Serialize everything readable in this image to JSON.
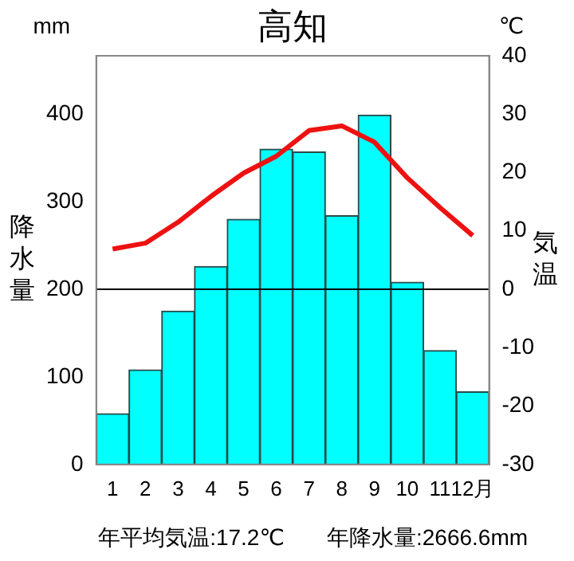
{
  "chart_data": {
    "type": "bar",
    "title": "高知",
    "categories": [
      "1",
      "2",
      "3",
      "4",
      "5",
      "6",
      "7",
      "8",
      "9",
      "10",
      "11",
      "12月"
    ],
    "series": [
      {
        "color": "#00ffff",
        "values": [
          58,
          108,
          175,
          226,
          280,
          360,
          357,
          284,
          399,
          208,
          130,
          83
        ]
      },
      {
        "type": "line",
        "axis": "y2",
        "color": "#ee1111",
        "values": [
          6.9,
          7.9,
          11.5,
          15.9,
          19.9,
          22.8,
          27.2,
          28.0,
          25.2,
          19.1,
          14.0,
          9.2
        ]
      }
    ],
    "ylabel": "降水量",
    "y2label": "気温",
    "ylim": [
      0,
      466.7
    ],
    "yticks": [
      0,
      100,
      200,
      300,
      400
    ],
    "y2lim": [
      -30,
      40
    ],
    "y2ticks": [
      -30,
      -20,
      -10,
      0,
      10,
      20,
      30,
      40
    ],
    "ref_lines": [
      {
        "axis": "y",
        "value": 200,
        "color": "#000000"
      }
    ],
    "marker": "none",
    "grid": false,
    "legend": false,
    "annotations": [
      "mm",
      "℃",
      "年平均気温:17.2℃",
      "年降水量:2666.6mm"
    ]
  }
}
